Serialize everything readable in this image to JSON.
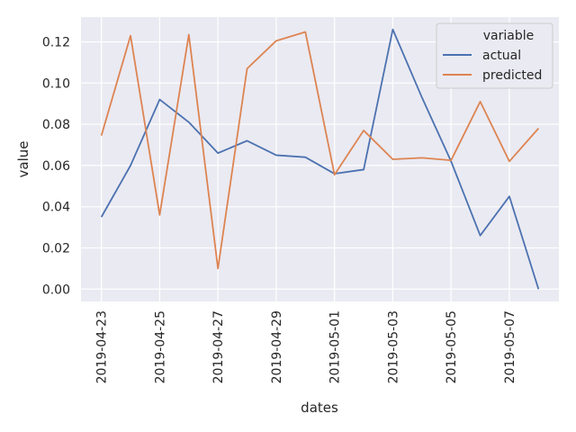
{
  "chart_data": {
    "type": "line",
    "xlabel": "dates",
    "ylabel": "value",
    "x": [
      "2019-04-23",
      "2019-04-24",
      "2019-04-25",
      "2019-04-26",
      "2019-04-27",
      "2019-04-28",
      "2019-04-29",
      "2019-04-30",
      "2019-05-01",
      "2019-05-02",
      "2019-05-03",
      "2019-05-04",
      "2019-05-05",
      "2019-05-06",
      "2019-05-07",
      "2019-05-08"
    ],
    "x_ticks": [
      "2019-04-23",
      "2019-04-25",
      "2019-04-27",
      "2019-04-29",
      "2019-05-01",
      "2019-05-03",
      "2019-05-05",
      "2019-05-07"
    ],
    "y_ticks": [
      "0.00",
      "0.02",
      "0.04",
      "0.06",
      "0.08",
      "0.10",
      "0.12"
    ],
    "ylim": [
      -0.006,
      0.132
    ],
    "legend": {
      "title": "variable",
      "placement": "top-right"
    },
    "grid": true,
    "series": [
      {
        "name": "actual",
        "color": "#4c72b0",
        "values": [
          0.035,
          0.06,
          0.092,
          0.081,
          0.066,
          0.072,
          0.065,
          0.064,
          0.056,
          0.058,
          0.126,
          0.093,
          0.062,
          0.026,
          0.045,
          0.0
        ]
      },
      {
        "name": "predicted",
        "color": "#dd8452",
        "values": [
          0.0745,
          0.123,
          0.036,
          0.1235,
          0.01,
          0.107,
          0.1205,
          0.1248,
          0.0555,
          0.077,
          0.063,
          0.0637,
          0.0625,
          0.091,
          0.062,
          0.078
        ]
      }
    ]
  }
}
